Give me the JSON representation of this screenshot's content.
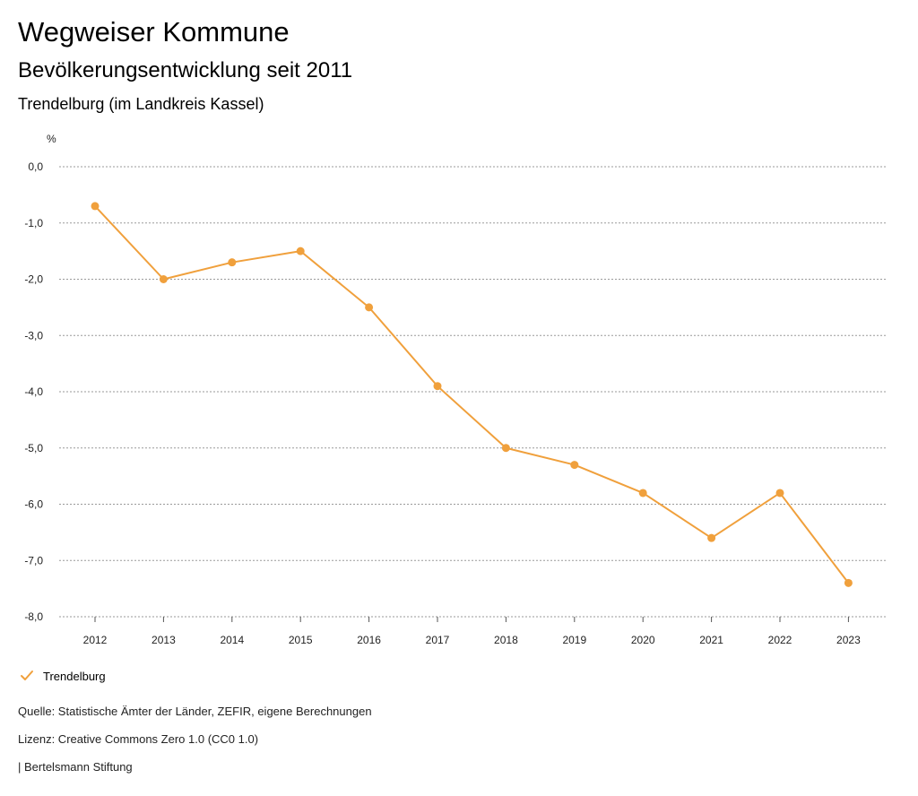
{
  "header": {
    "title": "Wegweiser Kommune",
    "subtitle": "Bevölkerungsentwicklung seit 2011",
    "region": "Trendelburg (im Landkreis Kassel)"
  },
  "chart_data": {
    "type": "line",
    "ylabel": "%",
    "xlabel": "",
    "ylim": [
      -8.0,
      0.0
    ],
    "yticks": [
      "0,0",
      "-1,0",
      "-2,0",
      "-3,0",
      "-4,0",
      "-5,0",
      "-6,0",
      "-7,0",
      "-8,0"
    ],
    "ytick_values": [
      0,
      -1,
      -2,
      -3,
      -4,
      -5,
      -6,
      -7,
      -8
    ],
    "categories": [
      "2012",
      "2013",
      "2014",
      "2015",
      "2016",
      "2017",
      "2018",
      "2019",
      "2020",
      "2021",
      "2022",
      "2023"
    ],
    "grid": true,
    "legend_position": "bottom-left",
    "series": [
      {
        "name": "Trendelburg",
        "color": "#f0a03c",
        "values": [
          -0.7,
          -2.0,
          -1.7,
          -1.5,
          -2.5,
          -3.9,
          -5.0,
          -5.3,
          -5.8,
          -6.6,
          -5.8,
          -7.4
        ]
      }
    ]
  },
  "legend": {
    "label": "Trendelburg",
    "icon": "check-icon"
  },
  "footer": {
    "source": "Quelle: Statistische Ämter der Länder, ZEFIR, eigene Berechnungen",
    "license": "Lizenz: Creative Commons Zero 1.0 (CC0 1.0)",
    "publisher": "| Bertelsmann Stiftung"
  }
}
